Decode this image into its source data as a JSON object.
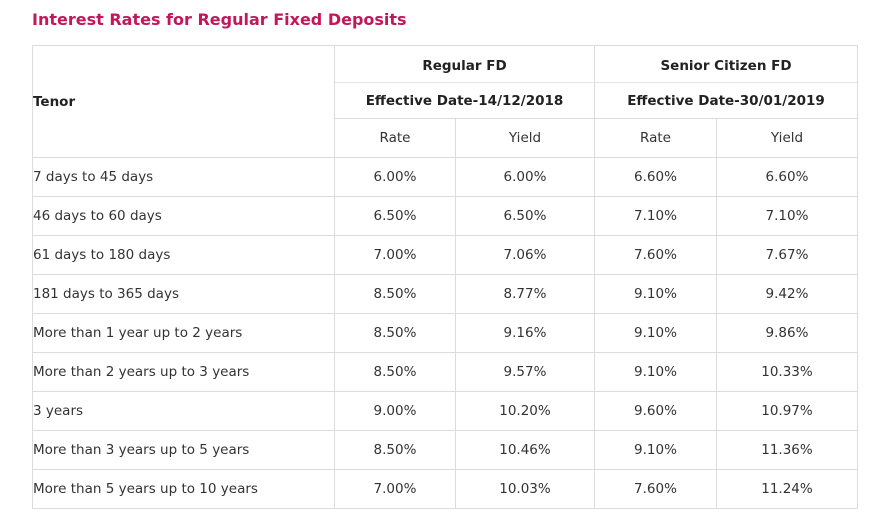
{
  "page": {
    "title": "Interest Rates for Regular Fixed Deposits"
  },
  "table": {
    "tenor_header": "Tenor",
    "groups": [
      {
        "name": "Regular FD",
        "effective_date": "Effective Date-14/12/2018"
      },
      {
        "name": "Senior Citizen FD",
        "effective_date": "Effective Date-30/01/2019"
      }
    ],
    "sub_headers": [
      "Rate",
      "Yield",
      "Rate",
      "Yield"
    ],
    "rows": [
      {
        "tenor": "7 days to 45 days",
        "values": [
          "6.00%",
          "6.00%",
          "6.60%",
          "6.60%"
        ]
      },
      {
        "tenor": "46 days to 60 days",
        "values": [
          "6.50%",
          "6.50%",
          "7.10%",
          "7.10%"
        ]
      },
      {
        "tenor": "61 days to 180 days",
        "values": [
          "7.00%",
          "7.06%",
          "7.60%",
          "7.67%"
        ]
      },
      {
        "tenor": "181 days to 365 days",
        "values": [
          "8.50%",
          "8.77%",
          "9.10%",
          "9.42%"
        ]
      },
      {
        "tenor": "More than 1 year up to 2 years",
        "values": [
          "8.50%",
          "9.16%",
          "9.10%",
          "9.86%"
        ]
      },
      {
        "tenor": "More than 2 years up to 3 years",
        "values": [
          "8.50%",
          "9.57%",
          "9.10%",
          "10.33%"
        ]
      },
      {
        "tenor": "3 years",
        "values": [
          "9.00%",
          "10.20%",
          "9.60%",
          "10.97%"
        ]
      },
      {
        "tenor": "More than 3 years up to 5 years",
        "values": [
          "8.50%",
          "10.46%",
          "9.10%",
          "11.36%"
        ]
      },
      {
        "tenor": "More than 5 years up to 10 years",
        "values": [
          "7.00%",
          "10.03%",
          "7.60%",
          "11.24%"
        ]
      }
    ]
  },
  "colors": {
    "title": "#c2185b",
    "border": "#dcdcdc",
    "text": "#333333"
  }
}
